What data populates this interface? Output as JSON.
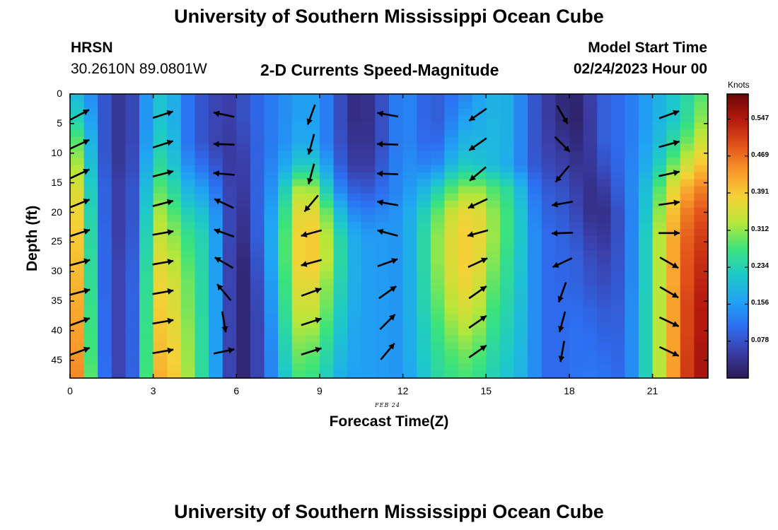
{
  "page": {
    "title_top": "University of Southern Mississippi Ocean Cube",
    "title_bottom": "University of Southern Mississippi Ocean Cube",
    "station": "HRSN",
    "coords": "30.2610N  89.0801W",
    "plot_title": "2-D Currents Speed-Magnitude",
    "model_start_label": "Model Start Time",
    "model_start_value": "02/24/2023 Hour 00",
    "date_label": "FEB 24"
  },
  "colors": {
    "arrow": "#000000",
    "colormap": [
      "#2b1a55",
      "#3b3ea8",
      "#2d6ff2",
      "#20a4f3",
      "#1ec9c9",
      "#3be37c",
      "#b6e73a",
      "#f4d236",
      "#f99a2a",
      "#e2531b",
      "#b51a0e",
      "#6b0606"
    ]
  },
  "chart_data": {
    "type": "heatmap",
    "xlabel": "Forecast Time(Z)",
    "ylabel": "Depth (ft)",
    "xlim": [
      0,
      23
    ],
    "ylim": [
      0,
      48
    ],
    "x_ticks": [
      0,
      3,
      6,
      9,
      12,
      15,
      18,
      21
    ],
    "y_ticks": [
      0,
      5,
      10,
      15,
      20,
      25,
      30,
      35,
      40,
      45
    ],
    "colorbar": {
      "label": "Knots",
      "range": [
        0,
        0.6
      ],
      "ticks": [
        "0.547",
        "0.469",
        "0.391",
        "0.312",
        "0.234",
        "0.156",
        "0.078"
      ],
      "tick_values": [
        0.547,
        0.469,
        0.391,
        0.312,
        0.234,
        0.156,
        0.078
      ]
    },
    "speed_grid": {
      "hours": [
        0,
        0.5,
        1,
        1.5,
        2,
        2.5,
        3,
        3.5,
        4,
        4.5,
        5,
        5.5,
        6,
        6.5,
        7,
        7.5,
        8,
        8.5,
        9,
        9.5,
        10,
        10.5,
        11,
        11.5,
        12,
        12.5,
        13,
        13.5,
        14,
        14.5,
        15,
        15.5,
        16,
        16.5,
        17,
        17.5,
        18,
        18.5,
        19,
        19.5,
        20,
        20.5,
        21,
        21.5,
        22,
        22.5,
        23
      ],
      "depths": [
        0,
        4,
        8,
        12,
        16,
        20,
        24,
        28,
        32,
        36,
        40,
        44,
        48
      ],
      "note_units": "knots",
      "values": [
        [
          0.2,
          0.18,
          0.1,
          0.06,
          0.03,
          0.1,
          0.2,
          0.22,
          0.14,
          0.09,
          0.07,
          0.05,
          0.06,
          0.09,
          0.11,
          0.13,
          0.15,
          0.17,
          0.15,
          0.1,
          0.04,
          0.02,
          0.05,
          0.1,
          0.14,
          0.12,
          0.08,
          0.1,
          0.12,
          0.14,
          0.18,
          0.19,
          0.17,
          0.1,
          0.06,
          0.04,
          0.01,
          0.03,
          0.08,
          0.1,
          0.11,
          0.14,
          0.17,
          0.2,
          0.23,
          0.26,
          0.3
        ],
        [
          0.24,
          0.22,
          0.1,
          0.06,
          0.03,
          0.1,
          0.2,
          0.22,
          0.14,
          0.09,
          0.07,
          0.05,
          0.06,
          0.09,
          0.11,
          0.13,
          0.15,
          0.17,
          0.15,
          0.1,
          0.04,
          0.02,
          0.05,
          0.1,
          0.14,
          0.12,
          0.08,
          0.1,
          0.15,
          0.17,
          0.18,
          0.19,
          0.17,
          0.1,
          0.06,
          0.04,
          0.01,
          0.02,
          0.08,
          0.1,
          0.11,
          0.14,
          0.17,
          0.2,
          0.23,
          0.28,
          0.33
        ],
        [
          0.3,
          0.27,
          0.1,
          0.06,
          0.03,
          0.1,
          0.21,
          0.24,
          0.14,
          0.09,
          0.07,
          0.05,
          0.05,
          0.08,
          0.11,
          0.13,
          0.16,
          0.18,
          0.15,
          0.1,
          0.05,
          0.03,
          0.05,
          0.1,
          0.14,
          0.12,
          0.09,
          0.12,
          0.18,
          0.19,
          0.19,
          0.19,
          0.17,
          0.1,
          0.06,
          0.05,
          0.03,
          0.02,
          0.08,
          0.1,
          0.11,
          0.14,
          0.18,
          0.22,
          0.27,
          0.32,
          0.37
        ],
        [
          0.35,
          0.3,
          0.11,
          0.06,
          0.03,
          0.11,
          0.24,
          0.26,
          0.16,
          0.12,
          0.1,
          0.06,
          0.04,
          0.07,
          0.12,
          0.14,
          0.2,
          0.24,
          0.2,
          0.12,
          0.06,
          0.04,
          0.06,
          0.11,
          0.14,
          0.14,
          0.12,
          0.16,
          0.22,
          0.22,
          0.2,
          0.19,
          0.16,
          0.1,
          0.07,
          0.06,
          0.05,
          0.03,
          0.06,
          0.09,
          0.11,
          0.15,
          0.2,
          0.26,
          0.33,
          0.37,
          0.42
        ],
        [
          0.38,
          0.33,
          0.12,
          0.07,
          0.04,
          0.12,
          0.28,
          0.29,
          0.2,
          0.17,
          0.15,
          0.08,
          0.04,
          0.06,
          0.13,
          0.16,
          0.3,
          0.34,
          0.29,
          0.16,
          0.1,
          0.08,
          0.09,
          0.12,
          0.14,
          0.17,
          0.2,
          0.26,
          0.3,
          0.32,
          0.3,
          0.26,
          0.24,
          0.14,
          0.09,
          0.08,
          0.07,
          0.04,
          0.03,
          0.07,
          0.11,
          0.16,
          0.24,
          0.33,
          0.4,
          0.44,
          0.47
        ],
        [
          0.4,
          0.35,
          0.12,
          0.07,
          0.04,
          0.12,
          0.32,
          0.32,
          0.24,
          0.22,
          0.19,
          0.1,
          0.03,
          0.05,
          0.14,
          0.18,
          0.35,
          0.38,
          0.35,
          0.24,
          0.15,
          0.12,
          0.13,
          0.14,
          0.15,
          0.2,
          0.26,
          0.32,
          0.36,
          0.38,
          0.34,
          0.28,
          0.26,
          0.16,
          0.1,
          0.09,
          0.08,
          0.05,
          0.02,
          0.05,
          0.1,
          0.16,
          0.26,
          0.36,
          0.44,
          0.48,
          0.5
        ],
        [
          0.42,
          0.36,
          0.13,
          0.07,
          0.04,
          0.13,
          0.34,
          0.34,
          0.28,
          0.25,
          0.22,
          0.1,
          0.03,
          0.04,
          0.14,
          0.2,
          0.36,
          0.4,
          0.38,
          0.28,
          0.2,
          0.15,
          0.16,
          0.15,
          0.15,
          0.21,
          0.28,
          0.34,
          0.38,
          0.39,
          0.35,
          0.28,
          0.26,
          0.17,
          0.11,
          0.1,
          0.09,
          0.07,
          0.04,
          0.05,
          0.1,
          0.17,
          0.28,
          0.38,
          0.46,
          0.5,
          0.52
        ],
        [
          0.43,
          0.37,
          0.13,
          0.07,
          0.05,
          0.13,
          0.36,
          0.36,
          0.3,
          0.26,
          0.22,
          0.1,
          0.02,
          0.03,
          0.13,
          0.2,
          0.36,
          0.4,
          0.38,
          0.29,
          0.2,
          0.16,
          0.16,
          0.15,
          0.15,
          0.21,
          0.28,
          0.34,
          0.38,
          0.39,
          0.34,
          0.27,
          0.25,
          0.17,
          0.11,
          0.1,
          0.1,
          0.08,
          0.06,
          0.06,
          0.1,
          0.17,
          0.28,
          0.38,
          0.47,
          0.51,
          0.54
        ],
        [
          0.44,
          0.38,
          0.13,
          0.07,
          0.05,
          0.14,
          0.37,
          0.38,
          0.32,
          0.27,
          0.22,
          0.1,
          0.02,
          0.02,
          0.12,
          0.19,
          0.35,
          0.38,
          0.35,
          0.27,
          0.2,
          0.16,
          0.16,
          0.15,
          0.15,
          0.21,
          0.27,
          0.33,
          0.37,
          0.38,
          0.32,
          0.26,
          0.24,
          0.17,
          0.11,
          0.1,
          0.1,
          0.09,
          0.07,
          0.07,
          0.1,
          0.17,
          0.28,
          0.38,
          0.47,
          0.52,
          0.55
        ],
        [
          0.45,
          0.39,
          0.14,
          0.07,
          0.05,
          0.14,
          0.38,
          0.39,
          0.33,
          0.27,
          0.22,
          0.1,
          0.02,
          0.02,
          0.11,
          0.19,
          0.33,
          0.36,
          0.33,
          0.26,
          0.19,
          0.16,
          0.16,
          0.15,
          0.15,
          0.21,
          0.26,
          0.31,
          0.35,
          0.36,
          0.3,
          0.25,
          0.23,
          0.17,
          0.11,
          0.1,
          0.11,
          0.1,
          0.09,
          0.08,
          0.1,
          0.18,
          0.28,
          0.38,
          0.48,
          0.53,
          0.56
        ],
        [
          0.46,
          0.4,
          0.14,
          0.07,
          0.05,
          0.14,
          0.39,
          0.4,
          0.34,
          0.28,
          0.22,
          0.1,
          0.02,
          0.02,
          0.1,
          0.18,
          0.31,
          0.33,
          0.3,
          0.24,
          0.18,
          0.16,
          0.16,
          0.15,
          0.15,
          0.2,
          0.25,
          0.29,
          0.32,
          0.33,
          0.28,
          0.24,
          0.22,
          0.17,
          0.11,
          0.1,
          0.11,
          0.11,
          0.1,
          0.09,
          0.1,
          0.18,
          0.28,
          0.38,
          0.48,
          0.53,
          0.56
        ],
        [
          0.47,
          0.41,
          0.14,
          0.07,
          0.05,
          0.14,
          0.4,
          0.41,
          0.35,
          0.28,
          0.22,
          0.1,
          0.02,
          0.02,
          0.1,
          0.17,
          0.29,
          0.3,
          0.27,
          0.22,
          0.17,
          0.16,
          0.16,
          0.15,
          0.15,
          0.2,
          0.24,
          0.27,
          0.29,
          0.3,
          0.26,
          0.23,
          0.21,
          0.17,
          0.11,
          0.1,
          0.11,
          0.11,
          0.11,
          0.1,
          0.1,
          0.18,
          0.28,
          0.38,
          0.48,
          0.54,
          0.57
        ],
        [
          0.48,
          0.42,
          0.15,
          0.07,
          0.05,
          0.14,
          0.41,
          0.42,
          0.36,
          0.28,
          0.22,
          0.1,
          0.02,
          0.02,
          0.1,
          0.16,
          0.27,
          0.28,
          0.25,
          0.2,
          0.16,
          0.16,
          0.16,
          0.15,
          0.15,
          0.19,
          0.23,
          0.26,
          0.27,
          0.28,
          0.24,
          0.22,
          0.2,
          0.17,
          0.11,
          0.1,
          0.11,
          0.12,
          0.12,
          0.11,
          0.1,
          0.18,
          0.28,
          0.38,
          0.49,
          0.54,
          0.57
        ]
      ]
    },
    "vectors": {
      "note": "Current direction vectors in degrees (0 = pointing right/east, positive counterclockwise, i.e. toward the top of the plot), sampled at hours and depths",
      "hours": [
        0.35,
        3.35,
        5.55,
        8.7,
        11.45,
        14.7,
        17.75,
        21.6
      ],
      "depths": [
        3.5,
        8.5,
        13.5,
        18.5,
        23.5,
        28.5,
        33.5,
        38.5,
        43.5
      ],
      "angle_deg": [
        [
          28,
          18,
          168,
          250,
          170,
          215,
          300,
          20
        ],
        [
          25,
          18,
          178,
          255,
          178,
          215,
          315,
          15
        ],
        [
          25,
          15,
          175,
          255,
          178,
          220,
          230,
          12
        ],
        [
          22,
          15,
          155,
          230,
          170,
          205,
          190,
          8
        ],
        [
          18,
          10,
          160,
          195,
          165,
          195,
          182,
          0
        ],
        [
          15,
          10,
          150,
          195,
          20,
          25,
          205,
          330
        ],
        [
          15,
          10,
          130,
          20,
          35,
          35,
          250,
          330
        ],
        [
          20,
          10,
          280,
          18,
          45,
          35,
          255,
          335
        ],
        [
          20,
          10,
          12,
          18,
          50,
          35,
          260,
          335
        ]
      ]
    }
  }
}
